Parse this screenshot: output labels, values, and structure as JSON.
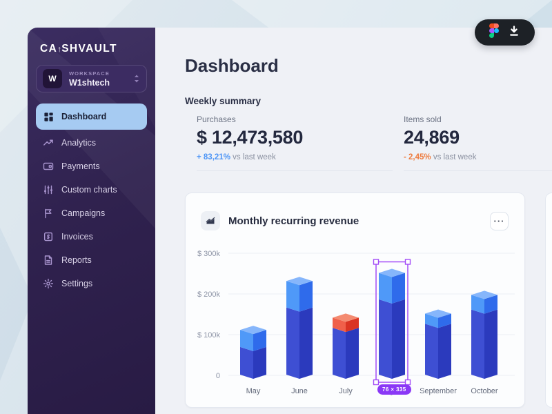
{
  "sidebar": {
    "logo": {
      "prefix": "CA",
      "glyph": "↑",
      "suffix": "SHVAULT"
    },
    "workspace": {
      "label": "WORKSPACE",
      "name": "W1shtech",
      "avatar_initial": "W"
    },
    "items": [
      {
        "label": "Dashboard",
        "icon": "grid",
        "active": true
      },
      {
        "label": "Analytics",
        "icon": "trend-up",
        "active": false
      },
      {
        "label": "Payments",
        "icon": "credit-card",
        "active": false
      },
      {
        "label": "Custom charts",
        "icon": "sliders",
        "active": false
      },
      {
        "label": "Campaigns",
        "icon": "flag",
        "active": false
      },
      {
        "label": "Invoices",
        "icon": "invoice",
        "active": false
      },
      {
        "label": "Reports",
        "icon": "report",
        "active": false
      },
      {
        "label": "Settings",
        "icon": "gear",
        "active": false
      }
    ]
  },
  "header": {
    "title": "Dashboard"
  },
  "summary": {
    "title": "Weekly summary",
    "stats": [
      {
        "label": "Purchases",
        "value": "$ 12,473,580",
        "delta": "+ 83,21%",
        "delta_color": "#4B94F6",
        "suffix": "vs last week"
      },
      {
        "label": "Items sold",
        "value": "24,869",
        "delta": "- 2,45%",
        "delta_color": "#EE7B3E",
        "suffix": "vs last week"
      }
    ]
  },
  "chart_card": {
    "title": "Monthly recurring revenue",
    "icon": "area-chart",
    "menu_label": "···"
  },
  "chart_data": {
    "type": "bar",
    "variant": "3d-stacked-columns",
    "title": "Monthly recurring revenue",
    "categories": [
      "May",
      "June",
      "July",
      "August",
      "September",
      "October"
    ],
    "series": [
      {
        "name": "base",
        "values": [
          68,
          165,
          115,
          185,
          125,
          160
        ]
      },
      {
        "name": "top",
        "values": [
          42,
          65,
          25,
          65,
          25,
          36
        ]
      }
    ],
    "top_segment_variant": [
      "blue",
      "blue",
      "orange",
      "blue",
      "blue",
      "blue"
    ],
    "unit": "$k",
    "ylim": [
      0,
      300
    ],
    "yticks": [
      {
        "value": 300,
        "label": "$ 300k"
      },
      {
        "value": 200,
        "label": "$ 200k"
      },
      {
        "value": 100,
        "label": "$ 100k"
      },
      {
        "value": 0,
        "label": "0"
      }
    ],
    "grid": true,
    "selected_index": 3,
    "selection_badge": "76 × 335",
    "colors": {
      "base_left": "#3E4FD3",
      "base_right": "#2B3ABD",
      "top_left": "#4F99F8",
      "top_right": "#2F6BEB",
      "top_cap": "#86B6FB",
      "alert_left": "#F0604A",
      "alert_right": "#DA3423",
      "alert_cap": "#F48B71",
      "selection": "#A24BF7",
      "badge_bg": "#8A38F6"
    }
  },
  "floating_button": {
    "icons": [
      "figma-logo",
      "download"
    ]
  }
}
